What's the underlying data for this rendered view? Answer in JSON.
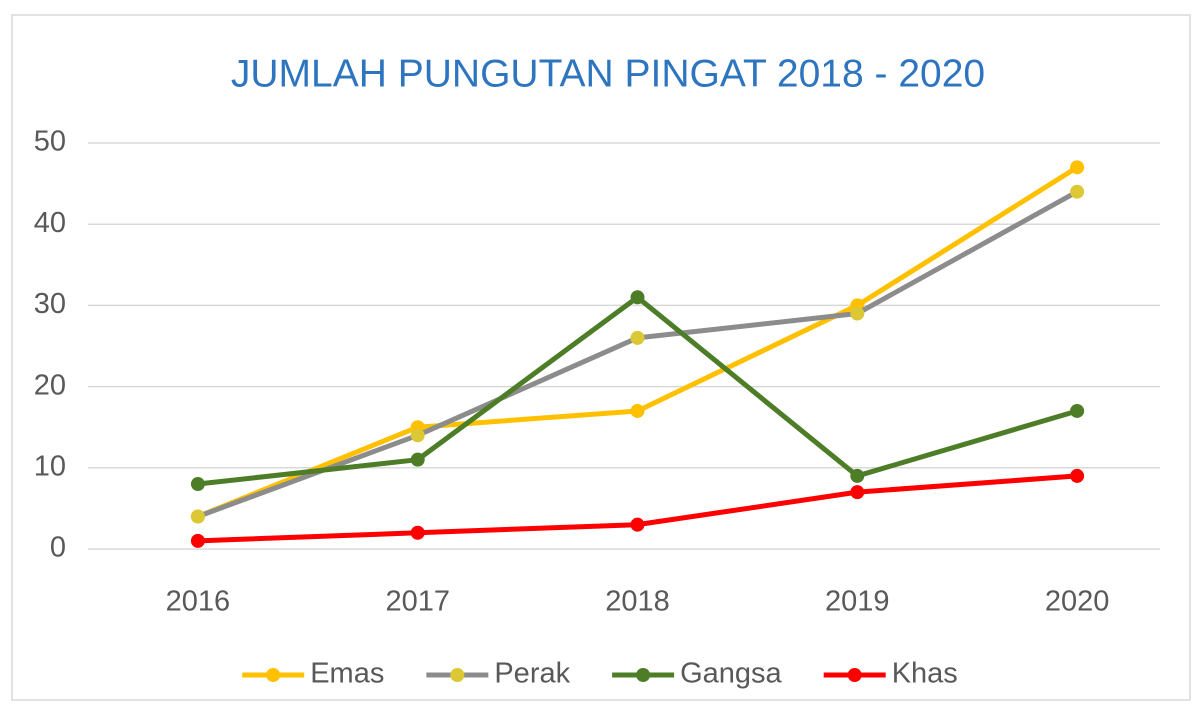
{
  "chart_data": {
    "type": "line",
    "title": "JUMLAH PUNGUTAN PINGAT 2018 - 2020",
    "categories": [
      "2016",
      "2017",
      "2018",
      "2019",
      "2020"
    ],
    "series": [
      {
        "name": "Emas",
        "color": "#ffc000",
        "values": [
          4,
          15,
          17,
          30,
          47
        ]
      },
      {
        "name": "Perak",
        "color": "#8c8c8c",
        "marker_color": "#dcc834",
        "values": [
          4,
          14,
          26,
          29,
          44
        ]
      },
      {
        "name": "Gangsa",
        "color": "#4e7d28",
        "values": [
          8,
          11,
          31,
          9,
          17
        ]
      },
      {
        "name": "Khas",
        "color": "#ff0000",
        "values": [
          1,
          2,
          3,
          7,
          9
        ]
      }
    ],
    "ylim": [
      0,
      50
    ],
    "yticks": [
      0,
      10,
      20,
      30,
      40,
      50
    ],
    "grid": true,
    "legend": "bottom"
  }
}
